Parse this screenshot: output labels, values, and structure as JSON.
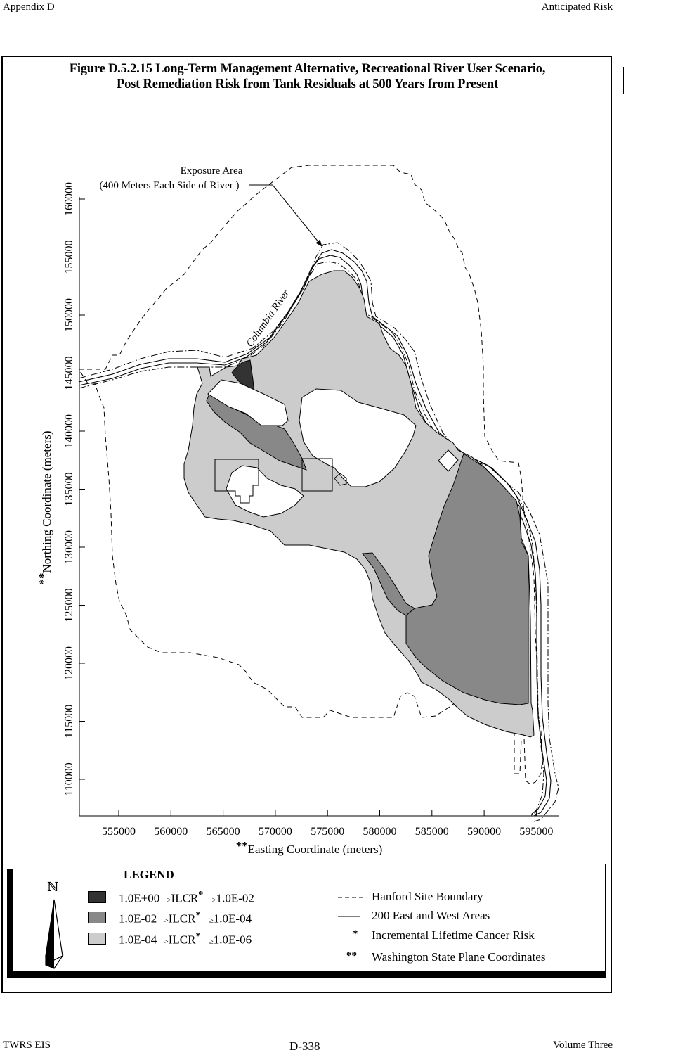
{
  "header": {
    "left": "Appendix D",
    "right": "Anticipated Risk"
  },
  "title": {
    "line1": "Figure D.5.2.15  Long-Term Management Alternative, Recreational River User Scenario,",
    "line2": "Post Remediation Risk from Tank Residuals at 500 Years from Present"
  },
  "map": {
    "exposure_label_1": "Exposure Area",
    "exposure_label_2": "(400 Meters Each Side of River )",
    "river_label": "Columbia River",
    "x_axis_label_prefix": "**",
    "x_axis_label": "Easting Coordinate (meters)",
    "y_axis_label_prefix": "**",
    "y_axis_label": "Northing Coordinate (meters)",
    "x_ticks": [
      "555000",
      "560000",
      "565000",
      "570000",
      "575000",
      "580000",
      "585000",
      "590000",
      "595000"
    ],
    "y_ticks": [
      "160000",
      "155000",
      "150000",
      "145000",
      "140000",
      "135000",
      "130000",
      "125000",
      "120000",
      "115000",
      "110000"
    ],
    "colors": {
      "high": "#333333",
      "medium": "#888888",
      "low": "#cccccc",
      "background": "#ffffff"
    }
  },
  "legend": {
    "title": "LEGEND",
    "north_symbol": "ℕ",
    "items": [
      {
        "range_upper": "1.0E+00",
        "op1": "≥",
        "label": "ILCR",
        "mark": "*",
        "op2": "≥",
        "range_lower": "1.0E-02",
        "color": "#333333"
      },
      {
        "range_upper": "1.0E-02",
        "op1": ">",
        "label": "ILCR",
        "mark": "*",
        "op2": "≥",
        "range_lower": "1.0E-04",
        "color": "#888888"
      },
      {
        "range_upper": "1.0E-04",
        "op1": ">",
        "label": "ILCR",
        "mark": "*",
        "op2": "≥",
        "range_lower": "1.0E-06",
        "color": "#cccccc"
      }
    ],
    "keys": [
      {
        "symbol": "dashed-line",
        "text": "Hanford Site Boundary"
      },
      {
        "symbol": "solid-line",
        "text": "200 East and West Areas"
      },
      {
        "symbol": "*",
        "text": "Incremental Lifetime Cancer Risk"
      },
      {
        "symbol": "**",
        "text": "Washington State Plane Coordinates"
      }
    ]
  },
  "footer": {
    "left": "TWRS EIS",
    "center": "D-338",
    "right": "Volume Three"
  }
}
